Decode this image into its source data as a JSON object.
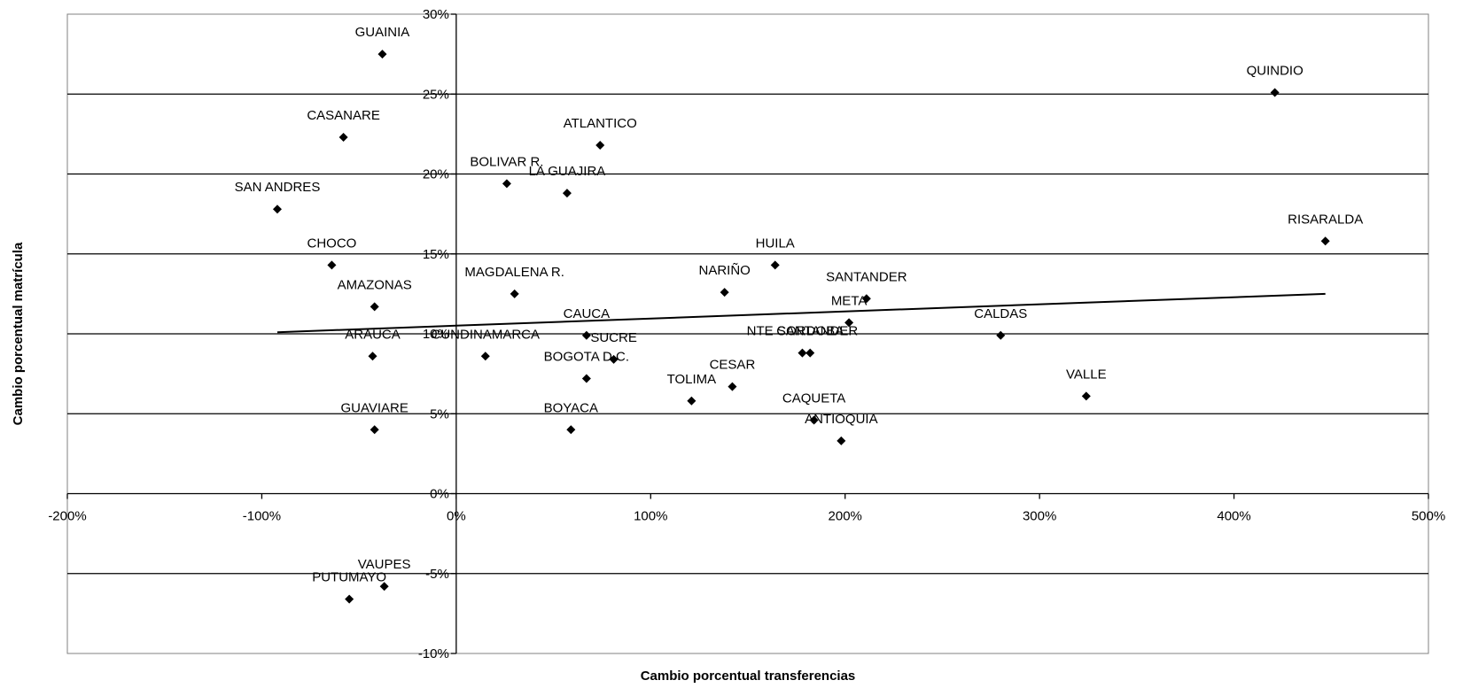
{
  "chart_data": {
    "type": "scatter",
    "title": "",
    "xlabel": "Cambio porcentual transferencias",
    "ylabel": "Cambio porcentual matrícula",
    "xlim": [
      -200,
      500
    ],
    "ylim": [
      -10,
      30
    ],
    "x_ticks": [
      {
        "value": -200,
        "label": "-200%"
      },
      {
        "value": -100,
        "label": "-100%"
      },
      {
        "value": 0,
        "label": "0%"
      },
      {
        "value": 100,
        "label": "100%"
      },
      {
        "value": 200,
        "label": "200%"
      },
      {
        "value": 300,
        "label": "300%"
      },
      {
        "value": 400,
        "label": "400%"
      },
      {
        "value": 500,
        "label": "500%"
      }
    ],
    "y_ticks": [
      {
        "value": -10,
        "label": "-10%"
      },
      {
        "value": -5,
        "label": "-5%"
      },
      {
        "value": 0,
        "label": "0%"
      },
      {
        "value": 5,
        "label": "5%"
      },
      {
        "value": 10,
        "label": "10%"
      },
      {
        "value": 15,
        "label": "15%"
      },
      {
        "value": 20,
        "label": "20%"
      },
      {
        "value": 25,
        "label": "25%"
      },
      {
        "value": 30,
        "label": "30%"
      }
    ],
    "grid": "horizontal",
    "legend": "none",
    "trendline": {
      "x": [
        -92,
        447
      ],
      "y": [
        10.1,
        12.5
      ]
    },
    "points": [
      {
        "label": "GUAINIA",
        "x": -38,
        "y": 27.5
      },
      {
        "label": "QUINDIO",
        "x": 421,
        "y": 25.1
      },
      {
        "label": "CASANARE",
        "x": -58,
        "y": 22.3
      },
      {
        "label": "ATLANTICO",
        "x": 74,
        "y": 21.8
      },
      {
        "label": "BOLIVAR R.",
        "x": 26,
        "y": 19.4
      },
      {
        "label": "LA GUAJIRA",
        "x": 57,
        "y": 18.8
      },
      {
        "label": "SAN ANDRES",
        "x": -92,
        "y": 17.8
      },
      {
        "label": "RISARALDA",
        "x": 447,
        "y": 15.8
      },
      {
        "label": "CHOCO",
        "x": -64,
        "y": 14.3
      },
      {
        "label": "HUILA",
        "x": 164,
        "y": 14.3
      },
      {
        "label": "AMAZONAS",
        "x": -42,
        "y": 11.7
      },
      {
        "label": "MAGDALENA R.",
        "x": 30,
        "y": 12.5
      },
      {
        "label": "NARIÑO",
        "x": 138,
        "y": 12.6
      },
      {
        "label": "SANTANDER",
        "x": 211,
        "y": 12.2
      },
      {
        "label": "META",
        "x": 202,
        "y": 10.7
      },
      {
        "label": "CAUCA",
        "x": 67,
        "y": 9.9
      },
      {
        "label": "CALDAS",
        "x": 280,
        "y": 9.9
      },
      {
        "label": "ARAUCA",
        "x": -43,
        "y": 8.6
      },
      {
        "label": "CUNDINAMARCA",
        "x": 15,
        "y": 8.6
      },
      {
        "label": "SUCRE",
        "x": 81,
        "y": 8.4
      },
      {
        "label": "NTE SANTANDER",
        "x": 178,
        "y": 8.8
      },
      {
        "label": "CORDOBA",
        "x": 182,
        "y": 8.8
      },
      {
        "label": "BOGOTA D.C.",
        "x": 67,
        "y": 7.2
      },
      {
        "label": "CESAR",
        "x": 142,
        "y": 6.7
      },
      {
        "label": "TOLIMA",
        "x": 121,
        "y": 5.8
      },
      {
        "label": "VALLE",
        "x": 324,
        "y": 6.1
      },
      {
        "label": "CAQUETA",
        "x": 184,
        "y": 4.6
      },
      {
        "label": "ANTIOQUIA",
        "x": 198,
        "y": 3.3
      },
      {
        "label": "GUAVIARE",
        "x": -42,
        "y": 4.0
      },
      {
        "label": "BOYACA",
        "x": 59,
        "y": 4.0
      },
      {
        "label": "VAUPES",
        "x": -37,
        "y": -5.8
      },
      {
        "label": "PUTUMAYO",
        "x": -55,
        "y": -6.6
      }
    ]
  }
}
